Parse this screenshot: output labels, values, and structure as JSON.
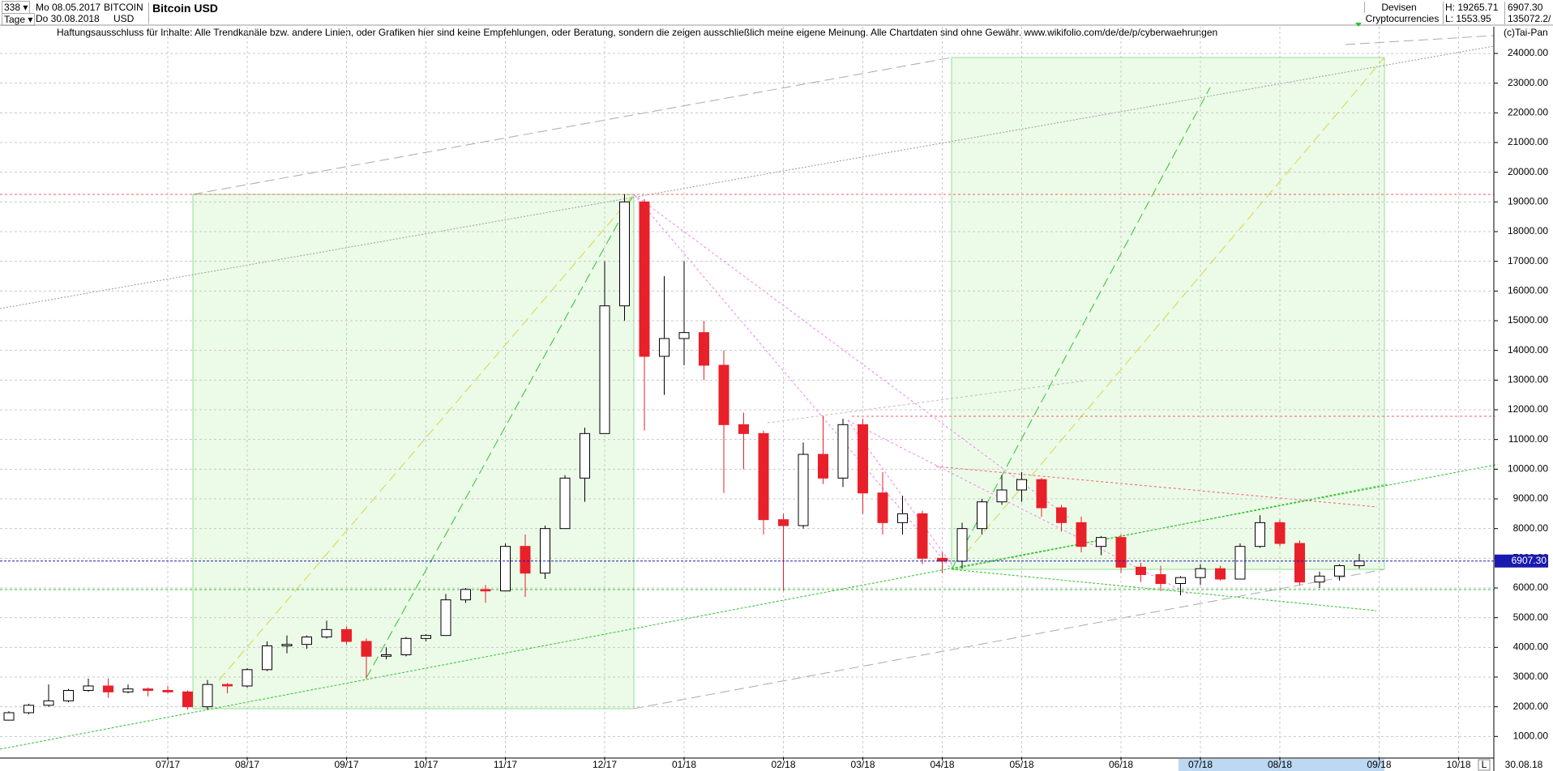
{
  "header": {
    "count": "338",
    "from": "Mo 08.05.2017",
    "period": "Tage",
    "to": "Do 30.08.2018",
    "symbol": "BITCOIN",
    "currency": "USD",
    "group": "Devisen",
    "sector": "Cryptocurrencies",
    "high": "H: 19265.71",
    "low": "L: 1553.95",
    "last": "6907.30",
    "volume": "135072.2/",
    "disclaimer": "Haftungsausschluss für Inhalte: Alle Trendkanäle bzw. andere Linien, oder Grafiken hier sind keine Empfehlungen, oder Beratung, sondern die zeigen ausschließlich meine eigene Meinung. Alle Chartdaten sind ohne Gewähr.  www.wikifolio.com/de/de/p/cyberwaehrungen",
    "copyright": "(c)Tai-Pan",
    "end_date": "30.08.18",
    "scale_mode": "L"
  },
  "chart_data": {
    "type": "candlestick",
    "title": "Bitcoin USD",
    "categories": [
      null,
      null,
      null,
      null,
      null,
      null,
      null,
      null,
      "07/17",
      null,
      null,
      null,
      "08/17",
      null,
      null,
      null,
      null,
      "09/17",
      null,
      null,
      null,
      "10/17",
      null,
      null,
      null,
      "11/17",
      null,
      null,
      null,
      null,
      "12/17",
      null,
      null,
      null,
      "01/18",
      null,
      null,
      null,
      null,
      "02/18",
      null,
      null,
      null,
      "03/18",
      null,
      null,
      null,
      "04/18",
      null,
      null,
      null,
      "05/18",
      null,
      null,
      null,
      null,
      "06/18",
      null,
      null,
      null,
      "07/18",
      null,
      null,
      null,
      "08/18",
      null,
      null,
      null,
      null,
      "09/18",
      null,
      null,
      null,
      "10/18",
      null
    ],
    "open": [
      1550,
      1800,
      2050,
      2200,
      2550,
      2700,
      2500,
      2600,
      2550,
      2500,
      2000,
      2750,
      2700,
      3250,
      4050,
      4100,
      4350,
      4600,
      4200,
      3700,
      3750,
      4300,
      4400,
      5600,
      5950,
      5900,
      7400,
      6500,
      8000,
      9700,
      11200,
      15500,
      19000,
      13800,
      14400,
      14600,
      13500,
      11500,
      11200,
      8300,
      8100,
      10500,
      9700,
      11500,
      9200,
      8200,
      8500,
      7000,
      6900,
      8000,
      8900,
      9300,
      9650,
      8700,
      8200,
      7400,
      7700,
      6700,
      6450,
      6150,
      6350,
      6650,
      6300,
      7400,
      8200,
      7500,
      6200,
      6400,
      6750,
      null,
      null,
      null,
      null,
      null,
      null
    ],
    "high": [
      1850,
      2100,
      2750,
      2600,
      2950,
      2950,
      2750,
      2650,
      2700,
      2550,
      2900,
      2800,
      3300,
      4200,
      4400,
      4400,
      4900,
      4700,
      4300,
      4000,
      4350,
      4450,
      5800,
      6000,
      6100,
      7500,
      7800,
      8100,
      9800,
      11400,
      17000,
      19265.71,
      19100,
      16500,
      17000,
      15000,
      14000,
      11900,
      11300,
      8500,
      10900,
      11800,
      11700,
      11700,
      9900,
      9100,
      8600,
      7200,
      8200,
      9000,
      9800,
      9900,
      9700,
      8800,
      8400,
      7750,
      7800,
      6850,
      6750,
      6400,
      6800,
      6750,
      7500,
      8450,
      8300,
      7600,
      6550,
      6800,
      7150,
      null,
      null,
      null,
      null,
      null,
      null
    ],
    "low": [
      1553.95,
      1750,
      2000,
      2150,
      2500,
      2300,
      2450,
      2350,
      2450,
      1900,
      1900,
      2450,
      2650,
      3200,
      3800,
      3950,
      4300,
      4100,
      2950,
      3600,
      3700,
      4200,
      4400,
      5500,
      5500,
      5900,
      5700,
      6300,
      8000,
      8900,
      11200,
      15000,
      11300,
      12500,
      13500,
      13000,
      9200,
      10000,
      7800,
      5900,
      8000,
      9500,
      9400,
      8500,
      7800,
      7800,
      6800,
      6500,
      6650,
      7800,
      8800,
      8900,
      8400,
      7900,
      7200,
      7100,
      6500,
      6200,
      5900,
      5750,
      6100,
      6250,
      6300,
      7350,
      7400,
      6100,
      6000,
      6250,
      6650,
      null,
      null,
      null,
      null,
      null,
      null
    ],
    "close": [
      1800,
      2050,
      2200,
      2550,
      2700,
      2500,
      2600,
      2550,
      2500,
      2000,
      2750,
      2700,
      3250,
      4050,
      4100,
      4350,
      4600,
      4200,
      3700,
      3750,
      4300,
      4400,
      5600,
      5950,
      5900,
      7400,
      6500,
      8000,
      9700,
      11200,
      15500,
      19000,
      13800,
      14400,
      14600,
      13500,
      11500,
      11200,
      8300,
      8100,
      10500,
      9700,
      11500,
      9200,
      8200,
      8500,
      7000,
      6900,
      8000,
      8900,
      9300,
      9650,
      8700,
      8200,
      7400,
      7700,
      6700,
      6450,
      6150,
      6350,
      6650,
      6300,
      7400,
      8200,
      7500,
      6200,
      6400,
      6750,
      6907.3,
      null,
      null,
      null,
      null,
      null,
      null
    ],
    "up_color": "#ffffff",
    "down_color": "#e8202a",
    "last_price": {
      "value": 6907.3,
      "label": "6907.30"
    },
    "last_price_color": "#1a1ab0",
    "ylim": [
      300,
      24900
    ],
    "yticks": [
      {
        "value": 1000,
        "label": "1000.00"
      },
      {
        "value": 2000,
        "label": "2000.00"
      },
      {
        "value": 3000,
        "label": "3000.00"
      },
      {
        "value": 4000,
        "label": "4000.00"
      },
      {
        "value": 5000,
        "label": "5000.00"
      },
      {
        "value": 6000,
        "label": "6000.00"
      },
      {
        "value": 7000,
        "label": "7000.00"
      },
      {
        "value": 8000,
        "label": "8000.00"
      },
      {
        "value": 9000,
        "label": "9000.00"
      },
      {
        "value": 10000,
        "label": "10000.00"
      },
      {
        "value": 11000,
        "label": "11000.00"
      },
      {
        "value": 12000,
        "label": "12000.00"
      },
      {
        "value": 13000,
        "label": "13000.00"
      },
      {
        "value": 14000,
        "label": "14000.00"
      },
      {
        "value": 15000,
        "label": "15000.00"
      },
      {
        "value": 16000,
        "label": "16000.00"
      },
      {
        "value": 17000,
        "label": "17000.00"
      },
      {
        "value": 18000,
        "label": "18000.00"
      },
      {
        "value": 19000,
        "label": "19000.00"
      },
      {
        "value": 20000,
        "label": "20000.00"
      },
      {
        "value": 21000,
        "label": "21000.00"
      },
      {
        "value": 22000,
        "label": "22000.00"
      },
      {
        "value": 23000,
        "label": "23000.00"
      },
      {
        "value": 24000,
        "label": "24000.00"
      }
    ],
    "grid": true
  }
}
